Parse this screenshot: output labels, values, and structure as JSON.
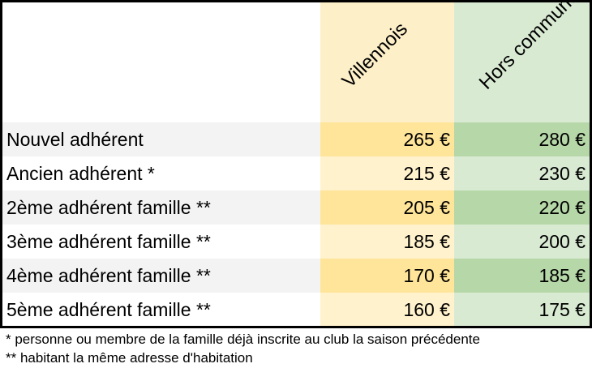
{
  "header": {
    "col_villennois": "Villennois",
    "col_hors_commune": "Hors commune"
  },
  "rows": [
    {
      "label": "Nouvel adhérent",
      "villennois": "265 €",
      "hors_commune": "280 €"
    },
    {
      "label": "Ancien adhérent *",
      "villennois": "215 €",
      "hors_commune": "230 €"
    },
    {
      "label": "2ème adhérent famille **",
      "villennois": "205 €",
      "hors_commune": "220 €"
    },
    {
      "label": "3ème adhérent famille **",
      "villennois": "185 €",
      "hors_commune": "200 €"
    },
    {
      "label": "4ème adhérent famille **",
      "villennois": "170 €",
      "hors_commune": "185 €"
    },
    {
      "label": "5ème adhérent famille **",
      "villennois": "160 €",
      "hors_commune": "175 €"
    }
  ],
  "notes": [
    "* personne ou membre de la famille déjà inscrite au club la saison précédente",
    "** habitant la même adresse d'habitation"
  ],
  "colors": {
    "villennois_header": "#fdf0c9",
    "villennois_dark": "#ffe599",
    "villennois_light": "#fff2cc",
    "hors_commune_dark": "#b6d7a8",
    "hors_commune_light": "#d9ead3",
    "label_dark": "#f3f3f3"
  }
}
